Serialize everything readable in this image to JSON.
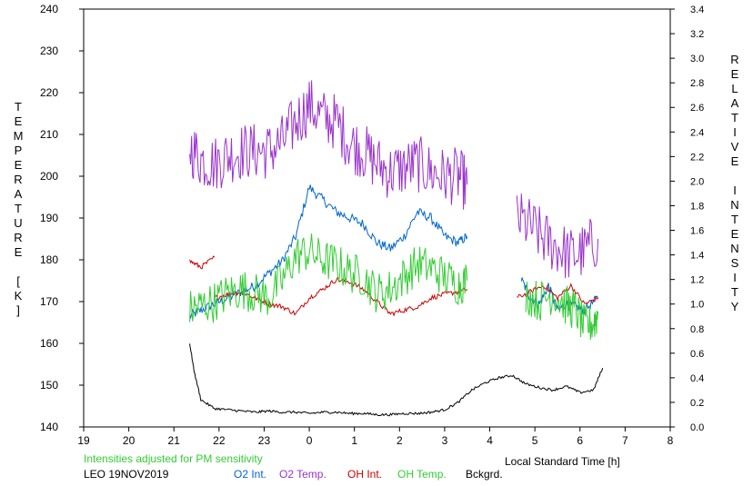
{
  "chart_data": {
    "type": "line",
    "xlabel": "Local Standard Time [h]",
    "ylabel_left": "TEMPERATURE [K]",
    "ylabel_right": "RELATIVE INTENSITY",
    "note": "Intensities adjusted for PM sensitivity",
    "station_date": "LEO 19NOV2019",
    "x_ticks": [
      "19",
      "20",
      "21",
      "22",
      "23",
      "0",
      "1",
      "2",
      "3",
      "4",
      "5",
      "6",
      "7",
      "8"
    ],
    "y_left_ticks": [
      140,
      150,
      160,
      170,
      180,
      190,
      200,
      210,
      220,
      230,
      240
    ],
    "y_right_ticks": [
      "0.0",
      "0.2",
      "0.4",
      "0.6",
      "0.8",
      "1.0",
      "1.2",
      "1.4",
      "1.6",
      "1.8",
      "2.0",
      "2.2",
      "2.4",
      "2.6",
      "2.8",
      "3.0",
      "3.2",
      "3.4"
    ],
    "xlim": [
      19,
      32
    ],
    "ylim_left": [
      140,
      240
    ],
    "ylim_right": [
      0,
      3.4
    ],
    "grid": false,
    "series": [
      {
        "name": "O2 Int.",
        "color": "#0066cc",
        "axis": "right",
        "noise": 0.04,
        "segments": [
          {
            "x": [
              21.35,
              21.6,
              21.9,
              22.2,
              22.5,
              22.8,
              23.1,
              23.4,
              23.7,
              24.0,
              24.3,
              24.6,
              24.9,
              25.2,
              25.5,
              25.8,
              26.1,
              26.4,
              26.7,
              27.0,
              27.3,
              27.5
            ],
            "y": [
              0.9,
              0.95,
              1.0,
              1.05,
              1.1,
              1.15,
              1.25,
              1.35,
              1.55,
              1.95,
              1.85,
              1.75,
              1.7,
              1.65,
              1.5,
              1.45,
              1.55,
              1.75,
              1.7,
              1.55,
              1.5,
              1.55
            ]
          },
          {
            "x": [
              28.7,
              28.9,
              29.1,
              29.3,
              29.5,
              29.7,
              29.9,
              30.1,
              30.4
            ],
            "y": [
              1.2,
              1.05,
              1.0,
              1.15,
              0.95,
              1.0,
              0.98,
              0.95,
              1.05
            ]
          }
        ]
      },
      {
        "name": "O2 Temp.",
        "color": "#9933cc",
        "axis": "left",
        "noise": 7,
        "segments": [
          {
            "x": [
              21.35,
              21.6,
              21.9,
              22.2,
              22.5,
              22.8,
              23.1,
              23.4,
              23.7,
              24.0,
              24.3,
              24.6,
              24.9,
              25.2,
              25.5,
              25.8,
              26.1,
              26.4,
              26.7,
              27.0,
              27.3,
              27.5
            ],
            "y": [
              207,
              204,
              203,
              205,
              206,
              206,
              206,
              208,
              213,
              217,
              214,
              213,
              208,
              206,
              203,
              201,
              202,
              203,
              201,
              200,
              200,
              198
            ]
          },
          {
            "x": [
              28.6,
              28.9,
              29.2,
              29.5,
              29.8,
              30.1,
              30.4
            ],
            "y": [
              190,
              188,
              185,
              183,
              181,
              182,
              185
            ]
          }
        ]
      },
      {
        "name": "OH Int.",
        "color": "#cc0000",
        "axis": "right",
        "noise": 0.02,
        "segments": [
          {
            "x": [
              21.35,
              21.6,
              21.9
            ],
            "y": [
              1.35,
              1.3,
              1.38
            ]
          },
          {
            "x": [
              21.9,
              22.2,
              22.5,
              22.8,
              23.1,
              23.4,
              23.7,
              24.0,
              24.3,
              24.6,
              24.9,
              25.2,
              25.5,
              25.8,
              26.1,
              26.4,
              26.7,
              27.0,
              27.3,
              27.5
            ],
            "y": [
              1.05,
              1.08,
              1.1,
              1.05,
              1.0,
              0.98,
              0.92,
              1.05,
              1.12,
              1.2,
              1.18,
              1.12,
              1.02,
              0.92,
              0.95,
              0.98,
              1.05,
              1.08,
              1.1,
              1.12
            ]
          },
          {
            "x": [
              28.6,
              28.9,
              29.2,
              29.5,
              29.8,
              30.1,
              30.4
            ],
            "y": [
              1.05,
              1.1,
              1.15,
              1.05,
              1.15,
              1.0,
              1.05
            ]
          }
        ]
      },
      {
        "name": "OH Temp.",
        "color": "#33cc33",
        "axis": "left",
        "noise": 5,
        "segments": [
          {
            "x": [
              21.35,
              21.6,
              21.9,
              22.2,
              22.5,
              22.8,
              23.1,
              23.4,
              23.7,
              24.0,
              24.3,
              24.6,
              24.9,
              25.2,
              25.5,
              25.8,
              26.1,
              26.4,
              26.7,
              27.0,
              27.3,
              27.5
            ],
            "y": [
              168,
              169,
              170,
              172,
              173,
              172,
              171,
              175,
              181,
              182,
              180,
              179,
              177,
              176,
              172,
              173,
              176,
              179,
              178,
              176,
              174,
              175
            ]
          },
          {
            "x": [
              28.8,
              29.1,
              29.4,
              29.7,
              29.9,
              30.1,
              30.3,
              30.4
            ],
            "y": [
              172,
              170,
              172,
              169,
              168,
              164,
              165,
              167
            ]
          }
        ]
      },
      {
        "name": "Bckgrd.",
        "color": "#000000",
        "axis": "right",
        "noise": 0.01,
        "segments": [
          {
            "x": [
              21.35,
              21.45,
              21.6,
              21.9,
              22.2,
              22.5,
              22.8,
              23.1,
              23.4,
              23.7,
              24.0,
              24.3,
              24.6,
              24.9,
              25.2,
              25.5,
              25.8,
              26.1,
              26.4,
              26.7,
              27.0,
              27.3,
              27.6,
              27.9,
              28.2,
              28.5,
              28.8,
              29.1,
              29.4,
              29.7,
              30.0,
              30.3,
              30.5
            ],
            "y": [
              0.68,
              0.45,
              0.22,
              0.15,
              0.14,
              0.13,
              0.12,
              0.13,
              0.12,
              0.12,
              0.11,
              0.12,
              0.12,
              0.11,
              0.11,
              0.1,
              0.1,
              0.11,
              0.11,
              0.12,
              0.14,
              0.2,
              0.3,
              0.36,
              0.4,
              0.42,
              0.35,
              0.32,
              0.3,
              0.33,
              0.28,
              0.3,
              0.48
            ]
          }
        ]
      }
    ]
  }
}
